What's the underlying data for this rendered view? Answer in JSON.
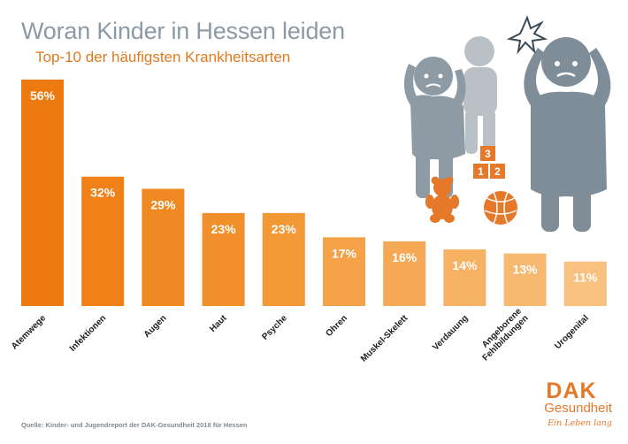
{
  "title": "Woran Kinder in Hessen leiden",
  "subtitle": "Top-10 der häufigsten Krankheitsarten",
  "source": "Quelle: Kinder- und Jugendreport der DAK-Gesundheit 2018 für Hessen",
  "logo": {
    "brand": "DAK",
    "name": "Gesundheit",
    "slogan": "Ein Leben lang"
  },
  "illustration_blocks": [
    "3",
    "1",
    "2"
  ],
  "colors": {
    "title": "#8c9aa6",
    "accent": "#e07a1f",
    "figure": "#8e9ba5",
    "figure_light": "#b9c1c7",
    "bars": [
      "#ed7a10",
      "#ef8118",
      "#f08921",
      "#f1902b",
      "#f29835",
      "#f4a148",
      "#f5a955",
      "#f6b163",
      "#f7b86f",
      "#f8c17f"
    ]
  },
  "chart_data": {
    "type": "bar",
    "title": "Woran Kinder in Hessen leiden",
    "subtitle": "Top-10 der häufigsten Krankheitsarten",
    "categories": [
      "Atemwege",
      "Infektionen",
      "Augen",
      "Haut",
      "Psyche",
      "Ohren",
      "Muskel-Skelett",
      "Verdauung",
      "Angeborene Fehlbildungen",
      "Urogenital"
    ],
    "values": [
      56,
      32,
      29,
      23,
      23,
      17,
      16,
      14,
      13,
      11
    ],
    "value_labels": [
      "56%",
      "32%",
      "29%",
      "23%",
      "23%",
      "17%",
      "16%",
      "14%",
      "13%",
      "11%"
    ],
    "unit": "%",
    "ylim": [
      0,
      56
    ],
    "grid": false,
    "legend": "none"
  }
}
